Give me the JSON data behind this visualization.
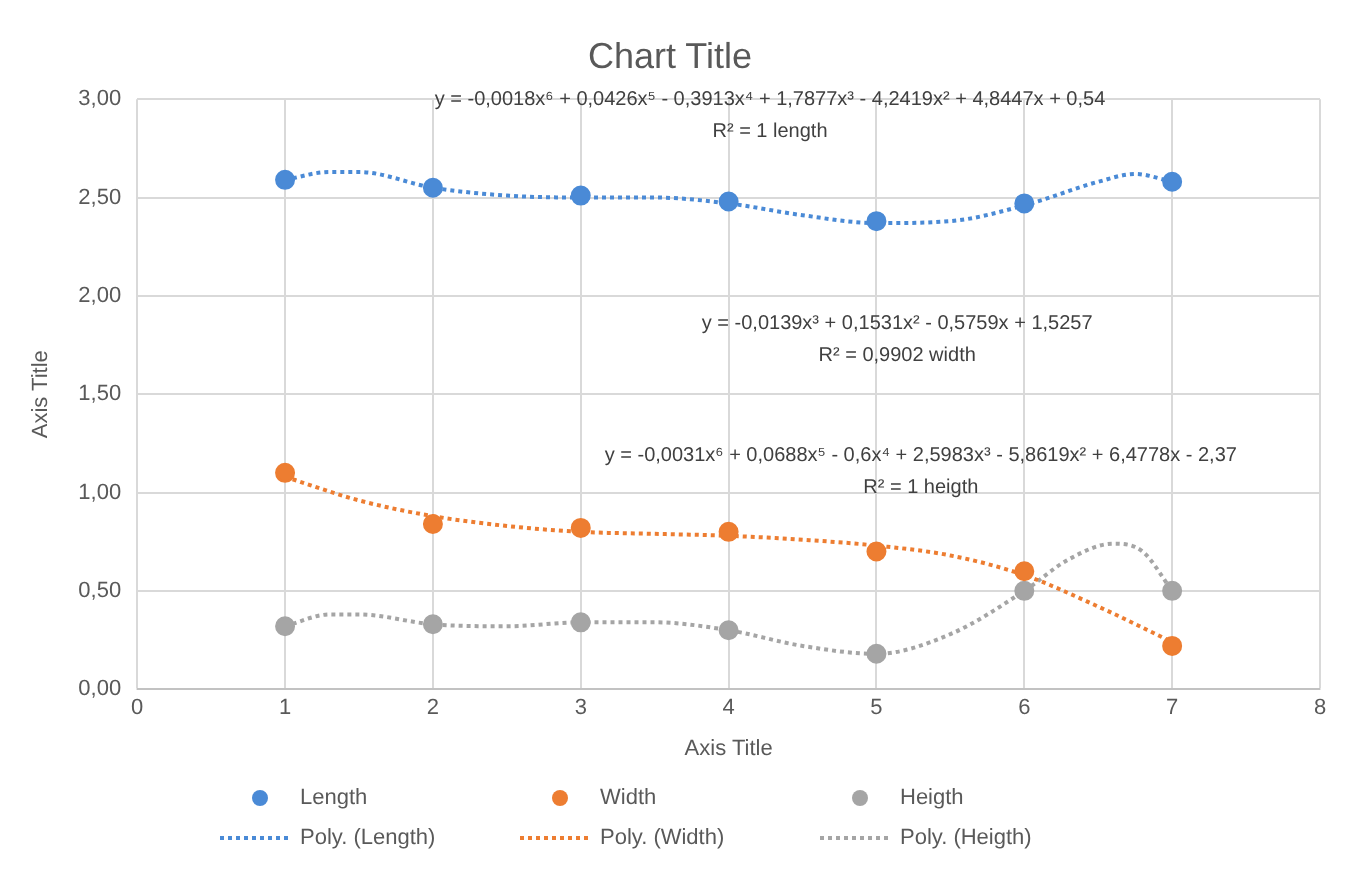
{
  "chart_data": {
    "type": "scatter",
    "title": "Chart Title",
    "xlabel": "Axis Title",
    "ylabel": "Axis Title",
    "xlim": [
      0,
      8
    ],
    "xticks": [
      0,
      1,
      2,
      3,
      4,
      5,
      6,
      7,
      8
    ],
    "ylim": [
      0,
      3
    ],
    "yticks": [
      {
        "value": 0,
        "label": "0,00"
      },
      {
        "value": 0.5,
        "label": "0,50"
      },
      {
        "value": 1,
        "label": "1,00"
      },
      {
        "value": 1.5,
        "label": "1,50"
      },
      {
        "value": 2,
        "label": "2,00"
      },
      {
        "value": 2.5,
        "label": "2,50"
      },
      {
        "value": 3,
        "label": "3,00"
      }
    ],
    "grid": true,
    "legend": "bottom",
    "marker": "circle",
    "series": [
      {
        "name": "Length",
        "color": "#4a8ad6",
        "x": [
          1,
          2,
          3,
          4,
          5,
          6,
          7
        ],
        "values": [
          2.59,
          2.55,
          2.51,
          2.48,
          2.38,
          2.47,
          2.58
        ]
      },
      {
        "name": "Width",
        "color": "#ed7d31",
        "x": [
          1,
          2,
          3,
          4,
          5,
          6,
          7
        ],
        "values": [
          1.1,
          0.84,
          0.82,
          0.8,
          0.7,
          0.6,
          0.22
        ]
      },
      {
        "name": "Heigth",
        "color": "#a5a5a5",
        "x": [
          1,
          2,
          3,
          4,
          5,
          6,
          7
        ],
        "values": [
          0.32,
          0.33,
          0.34,
          0.3,
          0.18,
          0.5,
          0.5
        ]
      },
      {
        "name": "Poly. (Length)",
        "type": "line",
        "line_style": "dotted",
        "marker": "none",
        "color": "#4a8ad6",
        "x": [
          1,
          1.3,
          1.5,
          2,
          2.5,
          3,
          3.5,
          4,
          4.5,
          5,
          5.5,
          6,
          6.5,
          6.75,
          7
        ],
        "values": [
          2.59,
          2.63,
          2.63,
          2.55,
          2.51,
          2.5,
          2.5,
          2.47,
          2.41,
          2.37,
          2.38,
          2.46,
          2.58,
          2.62,
          2.58
        ]
      },
      {
        "name": "Poly. (Width)",
        "type": "line",
        "line_style": "dotted",
        "marker": "none",
        "color": "#ed7d31",
        "x": [
          1,
          1.5,
          2,
          2.5,
          3,
          3.5,
          4,
          4.5,
          5,
          5.5,
          6,
          6.5,
          7
        ],
        "values": [
          1.08,
          0.96,
          0.88,
          0.83,
          0.8,
          0.79,
          0.78,
          0.76,
          0.73,
          0.68,
          0.58,
          0.42,
          0.24
        ]
      },
      {
        "name": "Poly. (Heigth)",
        "type": "line",
        "line_style": "dotted",
        "marker": "none",
        "color": "#a5a5a5",
        "x": [
          1,
          1.3,
          1.5,
          2,
          2.5,
          3,
          3.5,
          4,
          4.5,
          5,
          5.5,
          6,
          6.3,
          6.6,
          6.8,
          7
        ],
        "values": [
          0.32,
          0.38,
          0.38,
          0.33,
          0.32,
          0.34,
          0.34,
          0.3,
          0.22,
          0.18,
          0.28,
          0.5,
          0.66,
          0.74,
          0.7,
          0.5
        ]
      }
    ],
    "annotations": [
      "y = -0,0018x⁶ + 0,0426x⁵ - 0,3913x⁴ + 1,7877x³ - 4,2419x² + 4,8447x + 0,54\nR² = 1 length",
      "y = -0,0139x³ + 0,1531x² - 0,5759x + 1,5257\nR² = 0,9902 width",
      "y = -0,0031x⁶ + 0,0688x⁵ - 0,6x⁴ + 2,5983x³ - 5,8619x² + 6,4778x - 2,37\nR² = 1 heigth"
    ]
  }
}
